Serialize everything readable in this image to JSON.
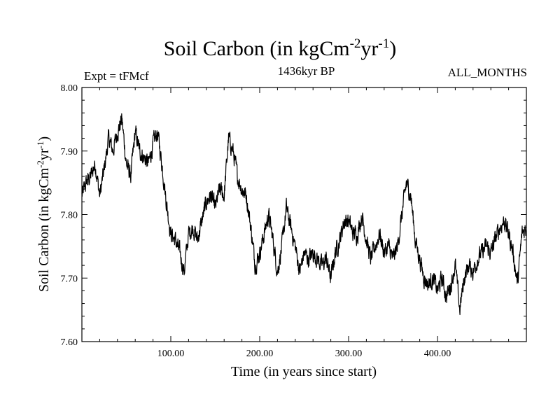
{
  "header": {
    "title_main": "Soil Carbon (in kgCm",
    "title_exp1": "-2",
    "title_mid": "yr",
    "title_exp2": "-1",
    "title_end": ")",
    "subtitle": "1436kyr BP",
    "experiment": "Expt = tFMcf",
    "period": "ALL_MONTHS"
  },
  "chart_data": {
    "type": "line",
    "title": "Soil Carbon (in kgCm-2yr-1)",
    "xlabel": "Time (in years since start)",
    "ylabel": "Soil Carbon (in kgCm-2yr-1)",
    "xlim": [
      0,
      500
    ],
    "ylim": [
      7.6,
      8.0
    ],
    "xticks": [
      100,
      200,
      300,
      400
    ],
    "xtick_labels": [
      "100.00",
      "200.00",
      "300.00",
      "400.00"
    ],
    "yticks": [
      7.6,
      7.7,
      7.8,
      7.9,
      8.0
    ],
    "ytick_labels": [
      "7.60",
      "7.70",
      "7.80",
      "7.90",
      "8.00"
    ],
    "line_color": "#000000",
    "noise_amplitude": 0.011,
    "series": [
      {
        "name": "Soil Carbon",
        "x": [
          0,
          5,
          10,
          15,
          20,
          25,
          30,
          35,
          40,
          45,
          50,
          55,
          60,
          65,
          70,
          75,
          80,
          85,
          90,
          95,
          100,
          105,
          110,
          115,
          120,
          125,
          130,
          135,
          140,
          145,
          150,
          155,
          160,
          165,
          170,
          175,
          180,
          185,
          190,
          195,
          200,
          205,
          210,
          215,
          220,
          225,
          230,
          235,
          240,
          245,
          250,
          255,
          260,
          265,
          270,
          275,
          280,
          285,
          290,
          295,
          300,
          305,
          310,
          315,
          320,
          325,
          330,
          335,
          340,
          345,
          350,
          355,
          360,
          365,
          370,
          375,
          380,
          385,
          390,
          395,
          400,
          405,
          410,
          415,
          420,
          425,
          430,
          435,
          440,
          445,
          450,
          455,
          460,
          465,
          470,
          475,
          480,
          485,
          490,
          495,
          500
        ],
        "values": [
          7.83,
          7.85,
          7.86,
          7.88,
          7.83,
          7.87,
          7.92,
          7.9,
          7.93,
          7.95,
          7.88,
          7.86,
          7.93,
          7.9,
          7.89,
          7.88,
          7.91,
          7.93,
          7.88,
          7.82,
          7.77,
          7.76,
          7.74,
          7.71,
          7.77,
          7.78,
          7.76,
          7.79,
          7.82,
          7.83,
          7.81,
          7.84,
          7.83,
          7.92,
          7.9,
          7.86,
          7.84,
          7.83,
          7.78,
          7.72,
          7.74,
          7.77,
          7.8,
          7.76,
          7.71,
          7.75,
          7.81,
          7.78,
          7.75,
          7.71,
          7.74,
          7.73,
          7.74,
          7.73,
          7.72,
          7.73,
          7.7,
          7.74,
          7.76,
          7.79,
          7.79,
          7.77,
          7.77,
          7.8,
          7.76,
          7.73,
          7.75,
          7.77,
          7.74,
          7.75,
          7.73,
          7.75,
          7.8,
          7.85,
          7.83,
          7.76,
          7.73,
          7.7,
          7.69,
          7.7,
          7.68,
          7.7,
          7.67,
          7.69,
          7.72,
          7.65,
          7.7,
          7.72,
          7.71,
          7.73,
          7.74,
          7.75,
          7.74,
          7.76,
          7.78,
          7.79,
          7.77,
          7.74,
          7.69,
          7.77,
          7.78
        ]
      }
    ]
  }
}
